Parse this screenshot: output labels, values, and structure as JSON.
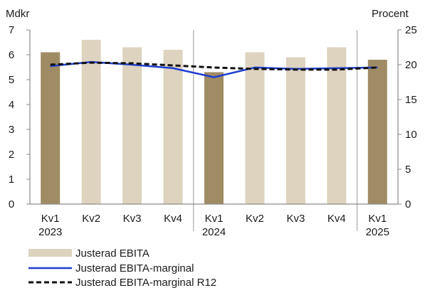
{
  "chart_data": {
    "type": "bar",
    "categories": [
      [
        "Kv1",
        "2023"
      ],
      [
        "Kv2",
        ""
      ],
      [
        "Kv3",
        ""
      ],
      [
        "Kv4",
        ""
      ],
      [
        "Kv1",
        "2024"
      ],
      [
        "Kv2",
        ""
      ],
      [
        "Kv3",
        ""
      ],
      [
        "Kv4",
        ""
      ],
      [
        "Kv1",
        "2025"
      ]
    ],
    "ylabel_left": "Mdkr",
    "ylabel_right": "Procent",
    "ylim_left": [
      0,
      7
    ],
    "ylim_right": [
      0,
      25
    ],
    "yticks_left": [
      0,
      1,
      2,
      3,
      4,
      5,
      6,
      7
    ],
    "yticks_right": [
      0,
      5,
      10,
      15,
      20,
      25
    ],
    "series": [
      {
        "name": "Justerad EBITA",
        "type": "bar",
        "axis": "left",
        "values": [
          6.1,
          6.6,
          6.3,
          6.2,
          5.3,
          6.1,
          5.9,
          6.3,
          5.8
        ],
        "colors": [
          "#a08c64",
          "#ddd3bf",
          "#ddd3bf",
          "#ddd3bf",
          "#a08c64",
          "#ddd3bf",
          "#ddd3bf",
          "#ddd3bf",
          "#a08c64"
        ]
      },
      {
        "name": "Justerad EBITA-marginal",
        "type": "line",
        "axis": "right",
        "color": "#1f3fcf",
        "style": "solid",
        "values": [
          19.8,
          20.4,
          20.0,
          19.5,
          18.2,
          19.6,
          19.4,
          19.5,
          19.6
        ]
      },
      {
        "name": "Justerad EBITA-marginal R12",
        "type": "line",
        "axis": "right",
        "color": "#111111",
        "style": "dashed",
        "values": [
          20.0,
          20.3,
          20.2,
          19.9,
          19.6,
          19.4,
          19.3,
          19.3,
          19.6
        ]
      }
    ],
    "year_separators_after": [
      3,
      7
    ],
    "grid": false,
    "legend_position": "bottom-left"
  }
}
